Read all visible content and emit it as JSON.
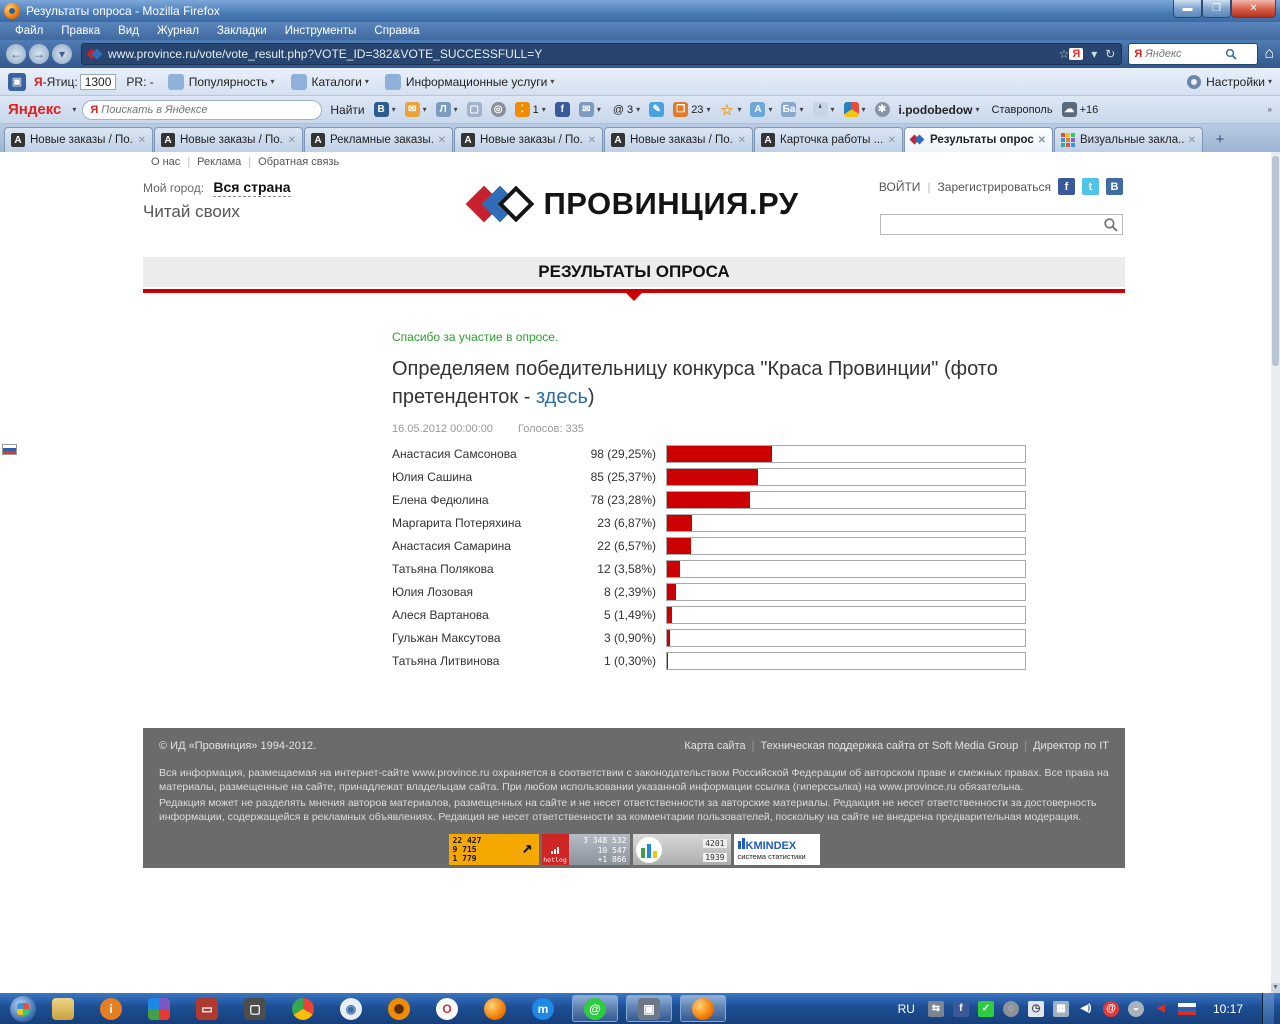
{
  "browser": {
    "title": "Результаты опроса - Mozilla Firefox",
    "menu": [
      "Файл",
      "Правка",
      "Вид",
      "Журнал",
      "Закладки",
      "Инструменты",
      "Справка"
    ],
    "url": "www.province.ru/vote/vote_result.php?VOTE_ID=382&VOTE_SUCCESSFULL=Y",
    "url_search_placeholder": "Яндекс",
    "window_buttons": [
      "minimize",
      "restore",
      "close"
    ],
    "tabs": [
      {
        "label": "Новые заказы / По...",
        "icon": "a-favicon",
        "active": false
      },
      {
        "label": "Новые заказы / По...",
        "icon": "a-favicon",
        "active": false
      },
      {
        "label": "Рекламные заказы...",
        "icon": "a-favicon",
        "active": false
      },
      {
        "label": "Новые заказы / По...",
        "icon": "a-favicon",
        "active": false
      },
      {
        "label": "Новые заказы / По...",
        "icon": "a-favicon",
        "active": false
      },
      {
        "label": "Карточка работы ...",
        "icon": "a-favicon",
        "active": false
      },
      {
        "label": "Результаты опроса",
        "icon": "province-favicon",
        "active": true
      },
      {
        "label": "Визуальные закла...",
        "icon": "speeddial-favicon",
        "active": false
      }
    ]
  },
  "yandexbar": {
    "citation_label": "Ятиц:",
    "citation_value": "1300",
    "pagerank": "PR: -",
    "menu_items": [
      "Популярность",
      "Каталоги",
      "Информационные услуги"
    ],
    "settings_label": "Настройки",
    "brand": "Яндекс",
    "search_placeholder": "Поискать в Яндексе",
    "find_button": "Найти",
    "counter_footprints": "1",
    "counter_mentions": "@ 3",
    "counter_book": "23",
    "username": "i.podobedow",
    "city": "Ставрополь",
    "temperature": "+16"
  },
  "page": {
    "top_links": [
      "О нас",
      "Реклама",
      "Обратная связь"
    ],
    "my_city_label": "Мой город:",
    "my_city_value": "Вся страна",
    "tagline": "Читай своих",
    "logo_text": "ПРОВИНЦИЯ.РУ",
    "login_label": "ВОЙТИ",
    "register_label": "Зарегистрироваться",
    "section_title": "РЕЗУЛЬТАТЫ ОПРОСА",
    "thanks_message": "Спасибо за участие в опросе.",
    "poll_title_pre": "Определяем победительницу конкурса \"Краса Провинции\" (фото претенденток - ",
    "poll_title_link": "здесь",
    "poll_title_post": ")",
    "date": "16.05.2012 00:00:00",
    "votes_label": "Голосов: 335"
  },
  "chart_data": {
    "type": "bar",
    "orientation": "horizontal",
    "title": "Определяем победительницу конкурса \"Краса Провинции\"",
    "categories": [
      "Анастасия Самсонова",
      "Юлия Сашина",
      "Елена Федюлина",
      "Маргарита Потеряхина",
      "Анастасия Самарина",
      "Татьяна Полякова",
      "Юлия Лозовая",
      "Алеся Вартанова",
      "Гульжан Максутова",
      "Татьяна Литвинова"
    ],
    "values": [
      98,
      85,
      78,
      23,
      22,
      12,
      8,
      5,
      3,
      1
    ],
    "percents": [
      29.25,
      25.37,
      23.28,
      6.87,
      6.57,
      3.58,
      2.39,
      1.49,
      0.9,
      0.3
    ],
    "labels": [
      "98 (29,25%)",
      "85 (25,37%)",
      "78 (23,28%)",
      "23 (6,87%)",
      "22 (6,57%)",
      "12 (3,58%)",
      "8 (2,39%)",
      "5 (1,49%)",
      "3 (0,90%)",
      "1 (0,30%)"
    ],
    "total_votes": 335,
    "bar_color": "#cc0000",
    "xlim": [
      0,
      100
    ]
  },
  "footer": {
    "copyright": "© ИД «Провинция» 1994-2012.",
    "links": [
      "Карта сайта",
      "Техническая поддержка сайта от Soft Media Group",
      "Директор по IT"
    ],
    "legal_1": "Вся информация, размещаемая на интернет-сайте www.province.ru охраняется в соответствии с законодательством Российской Федерации об авторском праве и смежных правах. Все права на материалы, размещенные на сайте, принадлежат владельцам сайта. При любом использовании указанной информации ссылка (гиперссылка) на www.province.ru обязательна.",
    "legal_2": "Редакция может не разделять мнения авторов материалов, размещенных на сайте и не несет ответственности за авторские материалы. Редакция не несет ответственности за достоверность информации, содержащейся в рекламных объявлениях. Редакция не несет ответственности за комментарии пользователей, поскольку на сайте не внедрена предварительная модерация.",
    "badges": {
      "top100_values": [
        "22 427",
        "9 715",
        "1 779"
      ],
      "hotlog_label": "hotlog",
      "hotlog_values": [
        "3 348 532",
        "10 547",
        "+1 866"
      ],
      "rate_values": [
        "4201",
        "1939"
      ],
      "kmindex_title": "KMINDEX",
      "kmindex_subtitle": "система статистики"
    }
  },
  "taskbar": {
    "language": "RU",
    "clock": "10:17",
    "icons": [
      "explorer-folder-icon",
      "info-icon",
      "picasa-icon",
      "floppy-icon",
      "remote-laptop-icon",
      "chrome-icon",
      "image-viewer-icon",
      "browser-orange-icon",
      "opera-icon",
      "firefox-icon",
      "maxthon-icon"
    ],
    "open_windows": [
      "mailru-agent-icon",
      "device-icon",
      "firefox-icon"
    ],
    "tray_icons": [
      "network-share-icon",
      "facebook-icon",
      "notes-icon",
      "punto-icon",
      "clock-icon",
      "network-icon",
      "volume-icon",
      "mailru-icon",
      "controller-icon",
      "sound-red-icon",
      "ru-flag-icon"
    ]
  }
}
